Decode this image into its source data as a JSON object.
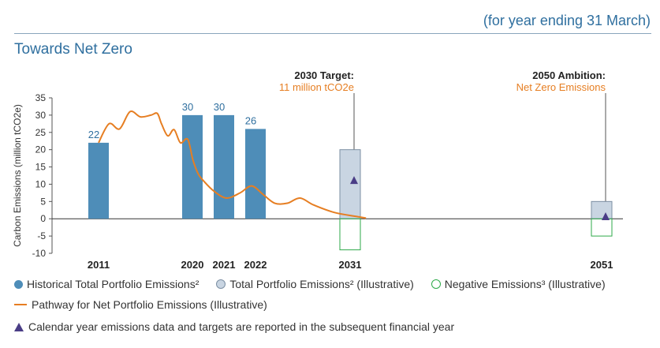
{
  "header": {
    "note": "(for year ending 31 March)",
    "title": "Towards Net Zero"
  },
  "chart_data": {
    "type": "bar",
    "ylabel": "Carbon Emissions (million tCO2e)",
    "ylim": [
      -10,
      35
    ],
    "yticks": [
      35,
      30,
      25,
      20,
      15,
      10,
      5,
      0,
      -5,
      -10
    ],
    "x_labels": [
      "2011",
      "2020",
      "2021",
      "2022",
      "2031",
      "2051"
    ],
    "historical": [
      {
        "year": "2011",
        "value": 22,
        "label": "22"
      },
      {
        "year": "2020",
        "value": 30,
        "label": "30"
      },
      {
        "year": "2021",
        "value": 30,
        "label": "30"
      },
      {
        "year": "2022",
        "value": 26,
        "label": "26"
      }
    ],
    "illustrative_total": [
      {
        "year": "2031",
        "value": 20
      },
      {
        "year": "2051",
        "value": 5
      }
    ],
    "illustrative_negative": [
      {
        "year": "2031",
        "value": -9
      },
      {
        "year": "2051",
        "value": -5
      }
    ],
    "pathway": [
      [
        2011,
        22
      ],
      [
        2012,
        27.5
      ],
      [
        2013,
        26
      ],
      [
        2014,
        31
      ],
      [
        2015,
        29.5
      ],
      [
        2016,
        30
      ],
      [
        2016.6,
        30.5
      ],
      [
        2017,
        27.5
      ],
      [
        2017.6,
        24
      ],
      [
        2018.2,
        25.8
      ],
      [
        2018.8,
        22
      ],
      [
        2019.5,
        23
      ],
      [
        2020,
        17
      ],
      [
        2020.5,
        13
      ],
      [
        2021,
        11
      ],
      [
        2022,
        8
      ],
      [
        2023.2,
        6
      ],
      [
        2024.5,
        7.5
      ],
      [
        2025.6,
        9.5
      ],
      [
        2026.7,
        7
      ],
      [
        2027.8,
        4.5
      ],
      [
        2029,
        4.5
      ],
      [
        2030.2,
        6
      ],
      [
        2031.5,
        4
      ],
      [
        2033.5,
        1.8
      ],
      [
        2035.5,
        0.7
      ],
      [
        2036.5,
        0.2
      ]
    ],
    "pathway_color": "#e67e22",
    "historical_color": "#4e8db8",
    "illustrative_color": "#c9d5e2",
    "negative_color": "#2eaa4a",
    "marker_color": "#4a3d86",
    "markers": [
      {
        "year": "2031",
        "value": 11
      },
      {
        "year": "2051",
        "value": 0.5
      }
    ],
    "annotations": [
      {
        "year": "2031",
        "title": "2030 Target:",
        "detail": "11 million tCO2e"
      },
      {
        "year": "2051",
        "title": "2050 Ambition:",
        "detail": "Net Zero Emissions"
      }
    ]
  },
  "legend": {
    "historical": "Historical Total Portfolio Emissions²",
    "total_illustrative": "Total Portfolio Emissions² (Illustrative)",
    "negative": "Negative Emissions³ (Illustrative)",
    "pathway": "Pathway for Net Portfolio Emissions (Illustrative)",
    "calendar_note": "Calendar year emissions data and targets are reported in the subsequent financial year"
  }
}
